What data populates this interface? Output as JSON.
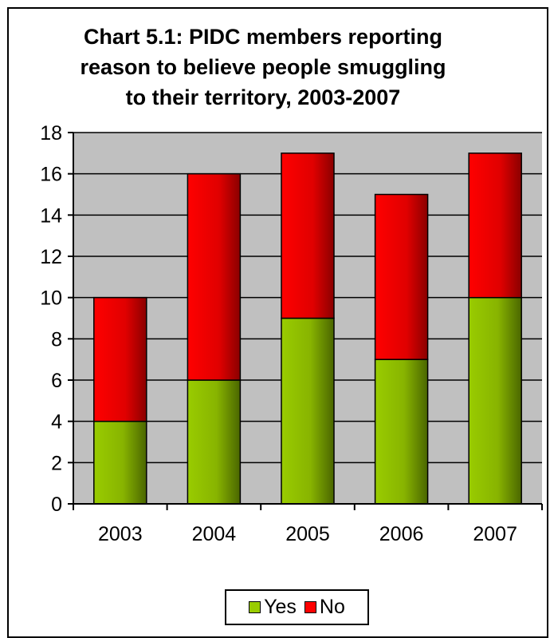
{
  "chart_data": {
    "type": "bar",
    "stacked": true,
    "title": "Chart 5.1: PIDC members reporting reason to believe people smuggling to their territory, 2003-2007",
    "title_lines": [
      "Chart 5.1: PIDC members reporting",
      "reason to believe people smuggling",
      "to their territory, 2003-2007"
    ],
    "categories": [
      "2003",
      "2004",
      "2005",
      "2006",
      "2007"
    ],
    "series": [
      {
        "name": "Yes",
        "values": [
          4,
          6,
          9,
          7,
          10
        ],
        "color": "#99cc00"
      },
      {
        "name": "No",
        "values": [
          6,
          10,
          8,
          8,
          7
        ],
        "color": "#ff0000"
      }
    ],
    "ylim": [
      0,
      18
    ],
    "yticks": [
      0,
      2,
      4,
      6,
      8,
      10,
      12,
      14,
      16,
      18
    ],
    "grid": true,
    "plot_background": "#c0c0c0",
    "legend_position": "bottom"
  }
}
